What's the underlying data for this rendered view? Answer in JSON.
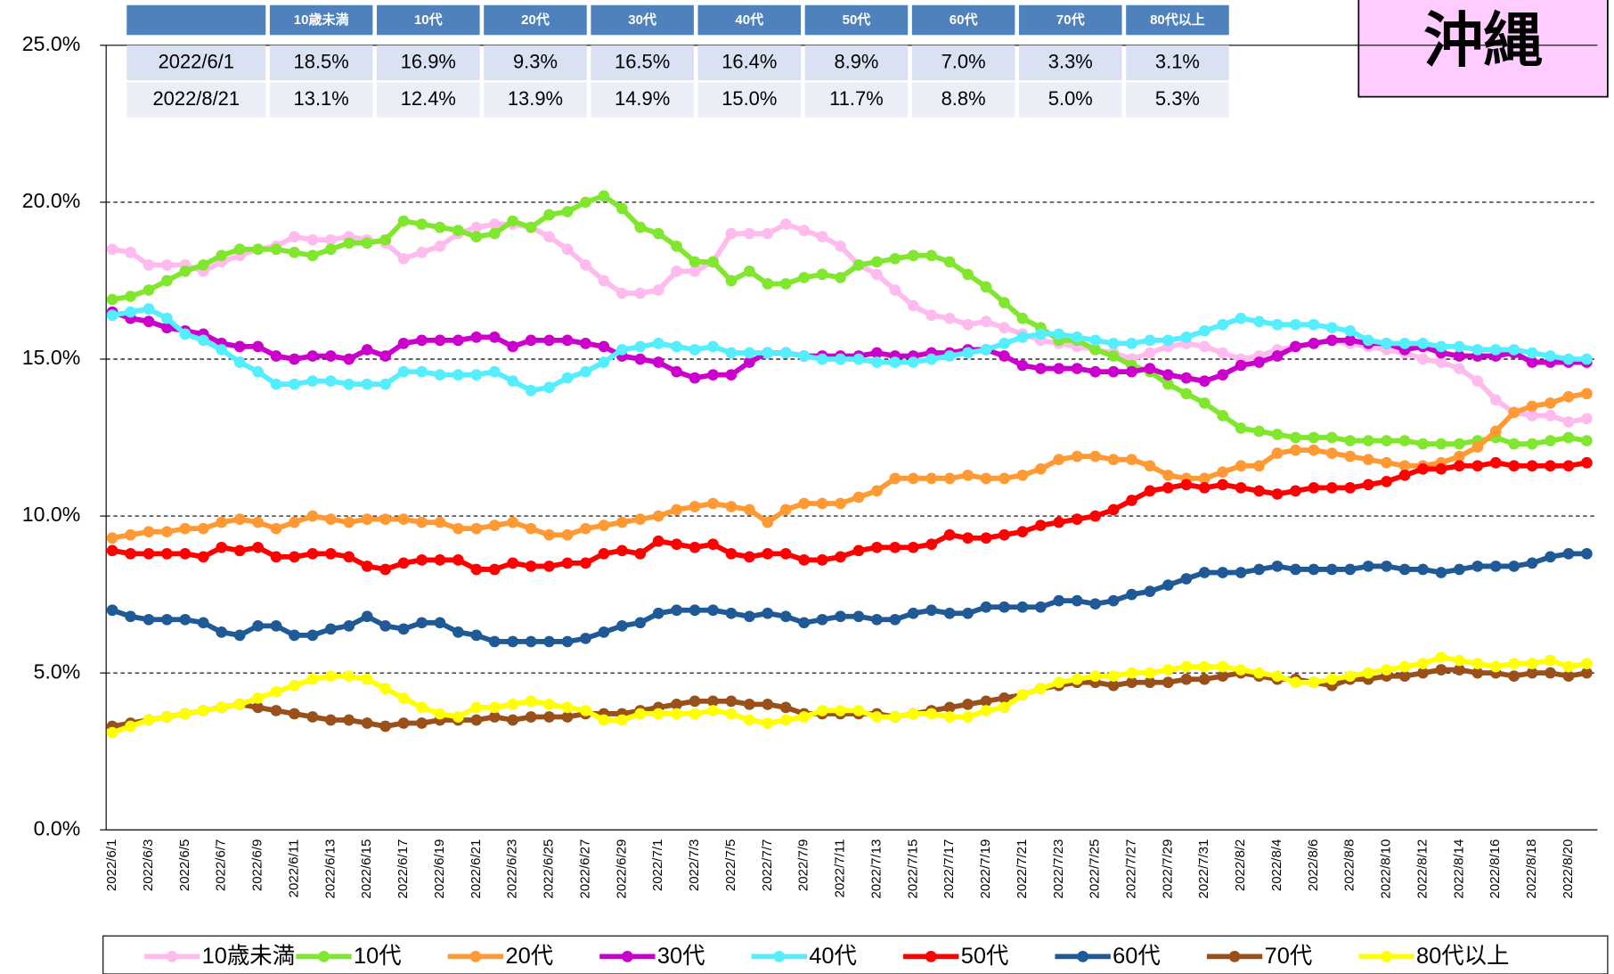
{
  "chart_data": {
    "type": "line",
    "title": "沖縄",
    "table": {
      "columns": [
        "10歳未満",
        "10代",
        "20代",
        "30代",
        "40代",
        "50代",
        "60代",
        "70代",
        "80代以上"
      ],
      "rows": [
        {
          "label": "2022/6/1",
          "cells": [
            "18.5%",
            "16.9%",
            "9.3%",
            "16.5%",
            "16.4%",
            "8.9%",
            "7.0%",
            "3.3%",
            "3.1%"
          ]
        },
        {
          "label": "2022/8/21",
          "cells": [
            "13.1%",
            "12.4%",
            "13.9%",
            "14.9%",
            "15.0%",
            "11.7%",
            "8.8%",
            "5.0%",
            "5.3%"
          ]
        }
      ]
    },
    "categories": [
      "2022/6/1",
      null,
      "2022/6/3",
      null,
      "2022/6/5",
      null,
      "2022/6/7",
      null,
      "2022/6/9",
      null,
      "2022/6/11",
      null,
      "2022/6/13",
      null,
      "2022/6/15",
      null,
      "2022/6/17",
      null,
      "2022/6/19",
      null,
      "2022/6/21",
      null,
      "2022/6/23",
      null,
      "2022/6/25",
      null,
      "2022/6/27",
      null,
      "2022/6/29",
      null,
      "2022/7/1",
      null,
      "2022/7/3",
      null,
      "2022/7/5",
      null,
      "2022/7/7",
      null,
      "2022/7/9",
      null,
      "2022/7/11",
      null,
      "2022/7/13",
      null,
      "2022/7/15",
      null,
      "2022/7/17",
      null,
      "2022/7/19",
      null,
      "2022/7/21",
      null,
      "2022/7/23",
      null,
      "2022/7/25",
      null,
      "2022/7/27",
      null,
      "2022/7/29",
      null,
      "2022/7/31",
      null,
      "2022/8/2",
      null,
      "2022/8/4",
      null,
      "2022/8/6",
      null,
      "2022/8/8",
      null,
      "2022/8/10",
      null,
      "2022/8/12",
      null,
      "2022/8/14",
      null,
      "2022/8/16",
      null,
      "2022/8/18",
      null,
      "2022/8/20",
      null
    ],
    "ylim": [
      0,
      25
    ],
    "yticks": [
      {
        "value": 0,
        "label": "0.0%"
      },
      {
        "value": 5,
        "label": "5.0%"
      },
      {
        "value": 10,
        "label": "10.0%"
      },
      {
        "value": 15,
        "label": "15.0%"
      },
      {
        "value": 20,
        "label": "20.0%"
      },
      {
        "value": 25,
        "label": "25.0%"
      }
    ],
    "grid": true,
    "series": [
      {
        "name": "10歳未満",
        "color": "#ffbbee",
        "values": [
          18.5,
          18.4,
          18.0,
          18.0,
          18.0,
          17.8,
          18.1,
          18.3,
          18.5,
          18.6,
          18.9,
          18.8,
          18.8,
          18.9,
          18.8,
          18.7,
          18.2,
          18.4,
          18.6,
          19.0,
          19.2,
          19.3,
          19.3,
          19.2,
          18.9,
          18.5,
          18.0,
          17.5,
          17.1,
          17.1,
          17.2,
          17.8,
          17.8,
          18.1,
          19.0,
          19.0,
          19.0,
          19.3,
          19.1,
          18.9,
          18.6,
          18.0,
          17.7,
          17.2,
          16.7,
          16.4,
          16.3,
          16.1,
          16.2,
          16.0,
          15.8,
          15.6,
          15.5,
          15.4,
          15.3,
          15.2,
          15.0,
          15.2,
          15.4,
          15.5,
          15.4,
          15.2,
          15.0,
          15.1,
          15.3,
          15.4,
          15.5,
          15.6,
          15.5,
          15.4,
          15.3,
          15.2,
          15.0,
          14.9,
          14.7,
          14.3,
          13.7,
          13.3,
          13.2,
          13.2,
          13.0,
          13.1
        ]
      },
      {
        "name": "10代",
        "color": "#80e62e",
        "values": [
          16.9,
          17.0,
          17.2,
          17.5,
          17.8,
          18.0,
          18.3,
          18.5,
          18.5,
          18.5,
          18.4,
          18.3,
          18.5,
          18.7,
          18.7,
          18.8,
          19.4,
          19.3,
          19.2,
          19.1,
          18.9,
          19.0,
          19.4,
          19.2,
          19.6,
          19.7,
          20.0,
          20.2,
          19.8,
          19.2,
          19.0,
          18.6,
          18.1,
          18.1,
          17.5,
          17.8,
          17.4,
          17.4,
          17.6,
          17.7,
          17.6,
          18.0,
          18.1,
          18.2,
          18.3,
          18.3,
          18.1,
          17.7,
          17.3,
          16.8,
          16.3,
          16.0,
          15.6,
          15.6,
          15.3,
          15.1,
          14.8,
          14.6,
          14.2,
          13.9,
          13.6,
          13.2,
          12.8,
          12.7,
          12.6,
          12.5,
          12.5,
          12.5,
          12.4,
          12.4,
          12.4,
          12.4,
          12.3,
          12.3,
          12.3,
          12.4,
          12.5,
          12.3,
          12.3,
          12.4,
          12.5,
          12.4
        ]
      },
      {
        "name": "20代",
        "color": "#ff9933",
        "values": [
          9.3,
          9.4,
          9.5,
          9.5,
          9.6,
          9.6,
          9.8,
          9.9,
          9.8,
          9.6,
          9.8,
          10.0,
          9.9,
          9.8,
          9.9,
          9.9,
          9.9,
          9.8,
          9.8,
          9.6,
          9.6,
          9.7,
          9.8,
          9.6,
          9.4,
          9.4,
          9.6,
          9.7,
          9.8,
          9.9,
          10.0,
          10.2,
          10.3,
          10.4,
          10.3,
          10.2,
          9.8,
          10.2,
          10.4,
          10.4,
          10.4,
          10.6,
          10.8,
          11.2,
          11.2,
          11.2,
          11.2,
          11.3,
          11.2,
          11.2,
          11.3,
          11.5,
          11.8,
          11.9,
          11.9,
          11.8,
          11.8,
          11.6,
          11.3,
          11.2,
          11.2,
          11.4,
          11.6,
          11.6,
          12.0,
          12.1,
          12.1,
          12.0,
          11.9,
          11.8,
          11.7,
          11.6,
          11.6,
          11.7,
          11.9,
          12.2,
          12.7,
          13.3,
          13.5,
          13.6,
          13.8,
          13.9
        ]
      },
      {
        "name": "30代",
        "color": "#cc00cc",
        "values": [
          16.5,
          16.3,
          16.2,
          16.0,
          15.9,
          15.8,
          15.5,
          15.4,
          15.4,
          15.1,
          15.0,
          15.1,
          15.1,
          15.0,
          15.3,
          15.1,
          15.5,
          15.6,
          15.6,
          15.6,
          15.7,
          15.7,
          15.4,
          15.6,
          15.6,
          15.6,
          15.5,
          15.4,
          15.1,
          15.0,
          14.9,
          14.6,
          14.4,
          14.5,
          14.5,
          14.9,
          15.2,
          15.2,
          15.1,
          15.1,
          15.1,
          15.1,
          15.2,
          15.1,
          15.1,
          15.2,
          15.2,
          15.3,
          15.3,
          15.1,
          14.8,
          14.7,
          14.7,
          14.7,
          14.6,
          14.6,
          14.6,
          14.7,
          14.5,
          14.4,
          14.3,
          14.5,
          14.8,
          14.9,
          15.1,
          15.4,
          15.5,
          15.6,
          15.6,
          15.5,
          15.5,
          15.3,
          15.4,
          15.2,
          15.1,
          15.1,
          15.1,
          15.2,
          14.9,
          14.9,
          14.9,
          14.9
        ]
      },
      {
        "name": "40代",
        "color": "#55eeff",
        "values": [
          16.4,
          16.5,
          16.6,
          16.3,
          15.8,
          15.6,
          15.3,
          14.9,
          14.6,
          14.2,
          14.2,
          14.3,
          14.3,
          14.2,
          14.2,
          14.2,
          14.6,
          14.6,
          14.5,
          14.5,
          14.5,
          14.6,
          14.3,
          14.0,
          14.1,
          14.4,
          14.6,
          14.9,
          15.3,
          15.4,
          15.5,
          15.4,
          15.3,
          15.4,
          15.2,
          15.2,
          15.2,
          15.2,
          15.1,
          15.0,
          15.0,
          15.0,
          14.9,
          14.9,
          14.9,
          15.0,
          15.1,
          15.2,
          15.3,
          15.5,
          15.7,
          15.8,
          15.8,
          15.7,
          15.6,
          15.5,
          15.5,
          15.6,
          15.6,
          15.7,
          15.9,
          16.1,
          16.3,
          16.2,
          16.1,
          16.1,
          16.1,
          16.0,
          15.9,
          15.6,
          15.5,
          15.5,
          15.5,
          15.4,
          15.4,
          15.3,
          15.3,
          15.3,
          15.2,
          15.1,
          15.0,
          15.0
        ]
      },
      {
        "name": "50代",
        "color": "#ff0000",
        "values": [
          8.9,
          8.8,
          8.8,
          8.8,
          8.8,
          8.7,
          9.0,
          8.9,
          9.0,
          8.7,
          8.7,
          8.8,
          8.8,
          8.7,
          8.4,
          8.3,
          8.5,
          8.6,
          8.6,
          8.6,
          8.3,
          8.3,
          8.5,
          8.4,
          8.4,
          8.5,
          8.5,
          8.8,
          8.9,
          8.8,
          9.2,
          9.1,
          9.0,
          9.1,
          8.8,
          8.7,
          8.8,
          8.8,
          8.6,
          8.6,
          8.7,
          8.9,
          9.0,
          9.0,
          9.0,
          9.1,
          9.4,
          9.3,
          9.3,
          9.4,
          9.5,
          9.7,
          9.8,
          9.9,
          10.0,
          10.2,
          10.5,
          10.8,
          10.9,
          11.0,
          10.9,
          11.0,
          10.9,
          10.8,
          10.7,
          10.8,
          10.9,
          10.9,
          10.9,
          11.0,
          11.1,
          11.3,
          11.5,
          11.5,
          11.6,
          11.6,
          11.7,
          11.6,
          11.6,
          11.6,
          11.6,
          11.7
        ]
      },
      {
        "name": "60代",
        "color": "#1f5a96",
        "values": [
          7.0,
          6.8,
          6.7,
          6.7,
          6.7,
          6.6,
          6.3,
          6.2,
          6.5,
          6.5,
          6.2,
          6.2,
          6.4,
          6.5,
          6.8,
          6.5,
          6.4,
          6.6,
          6.6,
          6.3,
          6.2,
          6.0,
          6.0,
          6.0,
          6.0,
          6.0,
          6.1,
          6.3,
          6.5,
          6.6,
          6.9,
          7.0,
          7.0,
          7.0,
          6.9,
          6.8,
          6.9,
          6.8,
          6.6,
          6.7,
          6.8,
          6.8,
          6.7,
          6.7,
          6.9,
          7.0,
          6.9,
          6.9,
          7.1,
          7.1,
          7.1,
          7.1,
          7.3,
          7.3,
          7.2,
          7.3,
          7.5,
          7.6,
          7.8,
          8.0,
          8.2,
          8.2,
          8.2,
          8.3,
          8.4,
          8.3,
          8.3,
          8.3,
          8.3,
          8.4,
          8.4,
          8.3,
          8.3,
          8.2,
          8.3,
          8.4,
          8.4,
          8.4,
          8.5,
          8.7,
          8.8,
          8.8
        ]
      },
      {
        "name": "70代",
        "color": "#99501a",
        "values": [
          3.3,
          3.4,
          3.5,
          3.6,
          3.7,
          3.8,
          3.9,
          4.0,
          3.9,
          3.8,
          3.7,
          3.6,
          3.5,
          3.5,
          3.4,
          3.3,
          3.4,
          3.4,
          3.5,
          3.5,
          3.5,
          3.6,
          3.5,
          3.6,
          3.6,
          3.6,
          3.7,
          3.7,
          3.7,
          3.8,
          3.9,
          4.0,
          4.1,
          4.1,
          4.1,
          4.0,
          4.0,
          3.9,
          3.7,
          3.7,
          3.7,
          3.7,
          3.7,
          3.6,
          3.7,
          3.8,
          3.9,
          4.0,
          4.1,
          4.2,
          4.3,
          4.5,
          4.6,
          4.7,
          4.7,
          4.6,
          4.7,
          4.7,
          4.7,
          4.8,
          4.8,
          4.9,
          5.0,
          4.9,
          4.8,
          4.8,
          4.7,
          4.6,
          4.8,
          4.8,
          4.9,
          4.9,
          5.0,
          5.1,
          5.1,
          5.0,
          5.0,
          4.9,
          5.0,
          5.0,
          4.9,
          5.0
        ]
      },
      {
        "name": "80代以上",
        "color": "#ffff00",
        "values": [
          3.1,
          3.3,
          3.5,
          3.6,
          3.7,
          3.8,
          3.9,
          4.0,
          4.2,
          4.4,
          4.6,
          4.8,
          4.9,
          4.9,
          4.8,
          4.5,
          4.2,
          3.9,
          3.7,
          3.6,
          3.9,
          3.9,
          4.0,
          4.1,
          4.0,
          3.9,
          3.8,
          3.5,
          3.5,
          3.7,
          3.7,
          3.7,
          3.7,
          3.8,
          3.7,
          3.5,
          3.4,
          3.5,
          3.6,
          3.8,
          3.8,
          3.8,
          3.6,
          3.6,
          3.7,
          3.7,
          3.6,
          3.6,
          3.8,
          3.9,
          4.3,
          4.5,
          4.7,
          4.8,
          4.9,
          4.9,
          5.0,
          5.0,
          5.1,
          5.2,
          5.2,
          5.2,
          5.1,
          5.0,
          4.9,
          4.7,
          4.7,
          4.8,
          4.9,
          5.0,
          5.1,
          5.2,
          5.3,
          5.5,
          5.4,
          5.3,
          5.2,
          5.3,
          5.3,
          5.4,
          5.2,
          5.3
        ]
      }
    ]
  }
}
